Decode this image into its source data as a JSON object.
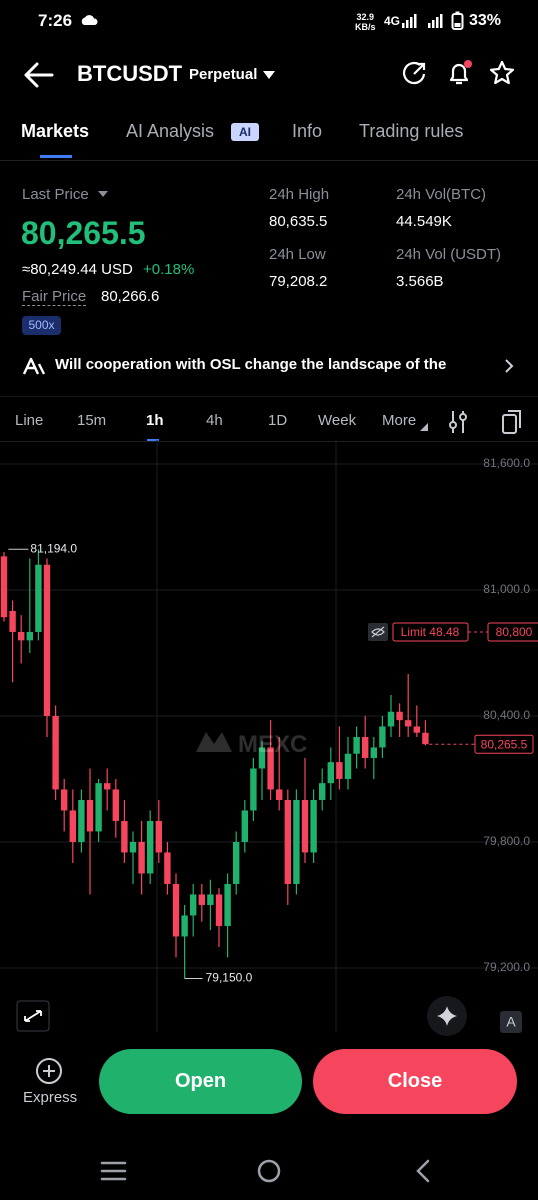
{
  "status_bar": {
    "time": "7:26",
    "speed": "32.9",
    "speed_unit": "KB/s",
    "network": "4G",
    "battery": "33%"
  },
  "header": {
    "symbol": "BTCUSDT",
    "contract": "Perpetual"
  },
  "tabs": [
    "Markets",
    "AI Analysis",
    "Info",
    "Trading rules"
  ],
  "ai_badge": "AI",
  "ticker": {
    "last_price_label": "Last Price",
    "last_price": "80,265.5",
    "usd_value": "≈80,249.44 USD",
    "change": "+0.18%",
    "fair_price_label": "Fair Price",
    "fair_price": "80,266.6",
    "leverage": "500x",
    "high_label": "24h High",
    "high": "80,635.5",
    "low_label": "24h Low",
    "low": "79,208.2",
    "vol_btc_label": "24h Vol(BTC)",
    "vol_btc": "44.549K",
    "vol_usdt_label": "24h Vol (USDT)",
    "vol_usdt": "3.566B"
  },
  "news": {
    "headline": "Will cooperation with OSL change the landscape of the"
  },
  "intervals": [
    "Line",
    "15m",
    "1h",
    "4h",
    "1D",
    "Week",
    "More"
  ],
  "chart_data": {
    "type": "candlestick",
    "watermark": "MEXC",
    "up_color": "#20b26c",
    "down_color": "#f6465d",
    "grid": true,
    "open": [
      81160,
      80900,
      80800,
      80760,
      80800,
      81120,
      80400,
      80050,
      79950,
      79800,
      80000,
      79850,
      80080,
      80050,
      79900,
      79750,
      79800,
      79650,
      79900,
      79750,
      79600,
      79350,
      79450,
      79550,
      79500,
      79550,
      79400,
      79600,
      79800,
      79950,
      80150,
      80250,
      80050,
      80000,
      79600,
      80000,
      79750,
      80000,
      80080,
      80180,
      80100,
      80220,
      80300,
      80200,
      80250,
      80350,
      80420,
      80380,
      80350,
      80320
    ],
    "high": [
      81180,
      80950,
      80880,
      81150,
      81194,
      81150,
      80450,
      80100,
      80050,
      80050,
      80150,
      80100,
      80150,
      80100,
      80000,
      79850,
      79900,
      79950,
      80000,
      79800,
      79650,
      79500,
      79600,
      79600,
      79620,
      79580,
      79650,
      79850,
      80000,
      80200,
      80280,
      80380,
      80300,
      80050,
      80050,
      80200,
      80050,
      80150,
      80250,
      80350,
      80300,
      80350,
      80400,
      80300,
      80400,
      80500,
      80460,
      80600,
      80450,
      80380
    ],
    "low": [
      80850,
      80560,
      80650,
      80700,
      80760,
      80300,
      80000,
      79850,
      79700,
      79750,
      79550,
      79800,
      79950,
      79820,
      79700,
      79600,
      79550,
      79600,
      79700,
      79550,
      79250,
      79150,
      79350,
      79420,
      79380,
      79300,
      79250,
      79550,
      79750,
      79900,
      80000,
      80000,
      79950,
      79500,
      79550,
      79700,
      79700,
      79950,
      80000,
      80050,
      80050,
      80150,
      80150,
      80100,
      80200,
      80300,
      80300,
      80300,
      80300,
      80260
    ],
    "close": [
      80870,
      80800,
      80760,
      80800,
      81120,
      80400,
      80050,
      79950,
      79800,
      80000,
      79850,
      80080,
      80050,
      79900,
      79750,
      79800,
      79650,
      79900,
      79750,
      79600,
      79350,
      79450,
      79550,
      79500,
      79550,
      79400,
      79600,
      79800,
      79950,
      80150,
      80250,
      80050,
      80000,
      79600,
      80000,
      79750,
      80000,
      80080,
      80180,
      80100,
      80220,
      80300,
      80200,
      80250,
      80350,
      80420,
      80380,
      80350,
      80320,
      80265.5
    ],
    "ylim": [
      78857,
      81714
    ],
    "yticks": [
      {
        "value": 81600,
        "label": "81,600.0"
      },
      {
        "value": 81000,
        "label": "81,000.0"
      },
      {
        "value": 80400,
        "label": "80,400.0"
      },
      {
        "value": 79800,
        "label": "79,800.0"
      },
      {
        "value": 79200,
        "label": "79,200.0"
      }
    ],
    "high_marker": {
      "value": 81194,
      "label": "81,194.0"
    },
    "low_marker": {
      "value": 79150,
      "label": "79,150.0"
    },
    "limit_order": {
      "text": "Limit 48.48",
      "price": {
        "value": 80800,
        "label": "80,800"
      }
    },
    "last_price": {
      "value": 80265.5,
      "label": "80,265.5"
    }
  },
  "chart_tools": {
    "auto": "A"
  },
  "actions": {
    "express": "Express",
    "open": "Open",
    "close": "Close"
  }
}
